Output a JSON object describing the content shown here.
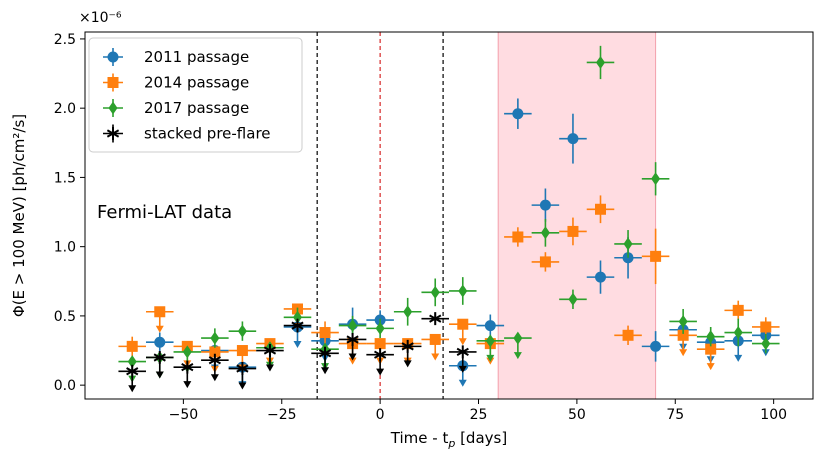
{
  "chart_data": {
    "type": "scatter",
    "title": "",
    "xlabel": "Time - t",
    "xlabel_sub": "p",
    "xlabel_unit": " [days]",
    "ylabel": "Φ(E > 100 MeV) [ph/cm²/s]",
    "y_scale_label": "×10⁻⁶",
    "annotation": "Fermi-LAT data",
    "xlim": [
      -75,
      110
    ],
    "ylim": [
      -0.1,
      2.55
    ],
    "xticks": [
      -50,
      -25,
      0,
      25,
      50,
      75,
      100
    ],
    "xtick_labels": [
      "−50",
      "−25",
      "0",
      "25",
      "50",
      "75",
      "100"
    ],
    "yticks": [
      0.0,
      0.5,
      1.0,
      1.5,
      2.0,
      2.5
    ],
    "ytick_labels": [
      "0.0",
      "0.5",
      "1.0",
      "1.5",
      "2.0",
      "2.5"
    ],
    "vlines": [
      {
        "x": -16,
        "color": "#000000",
        "style": "dashed"
      },
      {
        "x": 0,
        "color": "#d62728",
        "style": "dashed"
      },
      {
        "x": 16,
        "color": "#000000",
        "style": "dashed"
      }
    ],
    "shaded_region": {
      "x0": 30,
      "x1": 70,
      "color": "#ffc0c8"
    },
    "legend_position": "upper-left",
    "series": [
      {
        "name": "2011 passage",
        "color": "#1f77b4",
        "marker": "circle",
        "points": [
          {
            "x": -56,
            "y": 0.31,
            "err": 0.07,
            "ul": false
          },
          {
            "x": -42,
            "y": 0.25,
            "err": 0.07,
            "ul": true
          },
          {
            "x": -35,
            "y": 0.13,
            "err": 0.07,
            "ul": true
          },
          {
            "x": -21,
            "y": 0.42,
            "err": 0.09,
            "ul": true
          },
          {
            "x": -14,
            "y": 0.32,
            "err": 0.07,
            "ul": true
          },
          {
            "x": -7,
            "y": 0.44,
            "err": 0.12,
            "ul": false
          },
          {
            "x": 0,
            "y": 0.47,
            "err": 0.07,
            "ul": false
          },
          {
            "x": 21,
            "y": 0.14,
            "err": 0.07,
            "ul": true
          },
          {
            "x": 28,
            "y": 0.43,
            "err": 0.08,
            "ul": false
          },
          {
            "x": 35,
            "y": 1.96,
            "err": 0.11,
            "ul": false
          },
          {
            "x": 42,
            "y": 1.3,
            "err": 0.12,
            "ul": false
          },
          {
            "x": 49,
            "y": 1.78,
            "err": 0.18,
            "ul": false
          },
          {
            "x": 56,
            "y": 0.78,
            "err": 0.12,
            "ul": false
          },
          {
            "x": 63,
            "y": 0.92,
            "err": 0.15,
            "ul": false
          },
          {
            "x": 70,
            "y": 0.28,
            "err": 0.11,
            "ul": false
          },
          {
            "x": 77,
            "y": 0.4,
            "err": 0.07,
            "ul": true
          },
          {
            "x": 84,
            "y": 0.31,
            "err": 0.07,
            "ul": true
          },
          {
            "x": 91,
            "y": 0.32,
            "err": 0.09,
            "ul": true
          },
          {
            "x": 98,
            "y": 0.36,
            "err": 0.09,
            "ul": true
          }
        ]
      },
      {
        "name": "2014 passage",
        "color": "#ff7f0e",
        "marker": "square",
        "points": [
          {
            "x": -63,
            "y": 0.28,
            "err": 0.07,
            "ul": false
          },
          {
            "x": -56,
            "y": 0.53,
            "err": 0.07,
            "ul": true
          },
          {
            "x": -49,
            "y": 0.28,
            "err": 0.07,
            "ul": true
          },
          {
            "x": -42,
            "y": 0.24,
            "err": 0.07,
            "ul": true
          },
          {
            "x": -35,
            "y": 0.25,
            "err": 0.07,
            "ul": true
          },
          {
            "x": -28,
            "y": 0.3,
            "err": 0.07,
            "ul": true
          },
          {
            "x": -21,
            "y": 0.55,
            "err": 0.08,
            "ul": true
          },
          {
            "x": -14,
            "y": 0.38,
            "err": 0.08,
            "ul": false
          },
          {
            "x": -7,
            "y": 0.3,
            "err": 0.07,
            "ul": true
          },
          {
            "x": 0,
            "y": 0.3,
            "err": 0.07,
            "ul": true
          },
          {
            "x": 7,
            "y": 0.3,
            "err": 0.07,
            "ul": true
          },
          {
            "x": 14,
            "y": 0.33,
            "err": 0.07,
            "ul": true
          },
          {
            "x": 21,
            "y": 0.44,
            "err": 0.07,
            "ul": true
          },
          {
            "x": 28,
            "y": 0.3,
            "err": 0.07,
            "ul": true
          },
          {
            "x": 35,
            "y": 1.07,
            "err": 0.07,
            "ul": false
          },
          {
            "x": 42,
            "y": 0.89,
            "err": 0.07,
            "ul": false
          },
          {
            "x": 49,
            "y": 1.11,
            "err": 0.1,
            "ul": false
          },
          {
            "x": 56,
            "y": 1.27,
            "err": 0.1,
            "ul": false
          },
          {
            "x": 63,
            "y": 0.36,
            "err": 0.07,
            "ul": false
          },
          {
            "x": 70,
            "y": 0.93,
            "err": 0.2,
            "ul": false
          },
          {
            "x": 77,
            "y": 0.36,
            "err": 0.07,
            "ul": true
          },
          {
            "x": 84,
            "y": 0.26,
            "err": 0.07,
            "ul": true
          },
          {
            "x": 91,
            "y": 0.54,
            "err": 0.07,
            "ul": false
          },
          {
            "x": 98,
            "y": 0.42,
            "err": 0.07,
            "ul": false
          }
        ]
      },
      {
        "name": "2017 passage",
        "color": "#2ca02c",
        "marker": "diamond",
        "points": [
          {
            "x": -63,
            "y": 0.17,
            "err": 0.07,
            "ul": true
          },
          {
            "x": -56,
            "y": 0.2,
            "err": 0.07,
            "ul": true
          },
          {
            "x": -49,
            "y": 0.24,
            "err": 0.07,
            "ul": true
          },
          {
            "x": -42,
            "y": 0.34,
            "err": 0.07,
            "ul": false
          },
          {
            "x": -35,
            "y": 0.39,
            "err": 0.07,
            "ul": false
          },
          {
            "x": -28,
            "y": 0.27,
            "err": 0.07,
            "ul": true
          },
          {
            "x": -21,
            "y": 0.49,
            "err": 0.07,
            "ul": false
          },
          {
            "x": -14,
            "y": 0.26,
            "err": 0.07,
            "ul": true
          },
          {
            "x": -7,
            "y": 0.43,
            "err": 0.07,
            "ul": false
          },
          {
            "x": 0,
            "y": 0.41,
            "err": 0.07,
            "ul": false
          },
          {
            "x": 7,
            "y": 0.53,
            "err": 0.1,
            "ul": false
          },
          {
            "x": 14,
            "y": 0.67,
            "err": 0.1,
            "ul": false
          },
          {
            "x": 21,
            "y": 0.68,
            "err": 0.1,
            "ul": false
          },
          {
            "x": 28,
            "y": 0.32,
            "err": 0.07,
            "ul": true
          },
          {
            "x": 35,
            "y": 0.34,
            "err": 0.07,
            "ul": true
          },
          {
            "x": 42,
            "y": 1.1,
            "err": 0.1,
            "ul": false
          },
          {
            "x": 49,
            "y": 0.62,
            "err": 0.07,
            "ul": false
          },
          {
            "x": 56,
            "y": 2.33,
            "err": 0.12,
            "ul": false
          },
          {
            "x": 63,
            "y": 1.02,
            "err": 0.1,
            "ul": false
          },
          {
            "x": 70,
            "y": 1.49,
            "err": 0.12,
            "ul": false
          },
          {
            "x": 77,
            "y": 0.46,
            "err": 0.09,
            "ul": false
          },
          {
            "x": 84,
            "y": 0.35,
            "err": 0.07,
            "ul": false
          },
          {
            "x": 91,
            "y": 0.38,
            "err": 0.1,
            "ul": false
          },
          {
            "x": 98,
            "y": 0.3,
            "err": 0.07,
            "ul": false
          }
        ]
      },
      {
        "name": "stacked pre-flare",
        "color": "#000000",
        "marker": "star",
        "points": [
          {
            "x": -63,
            "y": 0.1,
            "err": 0.07,
            "ul": true
          },
          {
            "x": -56,
            "y": 0.2,
            "err": 0.07,
            "ul": true
          },
          {
            "x": -49,
            "y": 0.13,
            "err": 0.07,
            "ul": true
          },
          {
            "x": -42,
            "y": 0.18,
            "err": 0.07,
            "ul": true
          },
          {
            "x": -35,
            "y": 0.12,
            "err": 0.07,
            "ul": true
          },
          {
            "x": -28,
            "y": 0.25,
            "err": 0.07,
            "ul": true
          },
          {
            "x": -21,
            "y": 0.43,
            "err": 0.05,
            "ul": false
          },
          {
            "x": -14,
            "y": 0.23,
            "err": 0.07,
            "ul": true
          },
          {
            "x": -7,
            "y": 0.33,
            "err": 0.07,
            "ul": true
          },
          {
            "x": 0,
            "y": 0.22,
            "err": 0.07,
            "ul": true
          },
          {
            "x": 7,
            "y": 0.28,
            "err": 0.07,
            "ul": true
          },
          {
            "x": 14,
            "y": 0.48,
            "err": 0.04,
            "ul": false
          },
          {
            "x": 21,
            "y": 0.24,
            "err": 0.07,
            "ul": true
          }
        ]
      }
    ]
  }
}
